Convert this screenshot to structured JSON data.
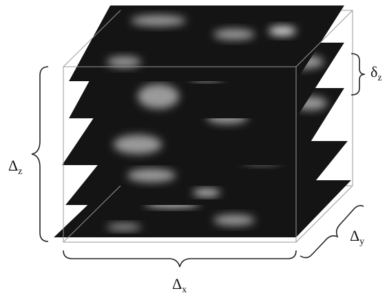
{
  "labels": {
    "delta_z": {
      "symbol": "Δ",
      "sub": "z"
    },
    "delta_x": {
      "symbol": "Δ",
      "sub": "x"
    },
    "delta_y": {
      "symbol": "Δ",
      "sub": "y"
    },
    "slice_spacing": {
      "symbol": "δ",
      "sub": "z"
    }
  }
}
